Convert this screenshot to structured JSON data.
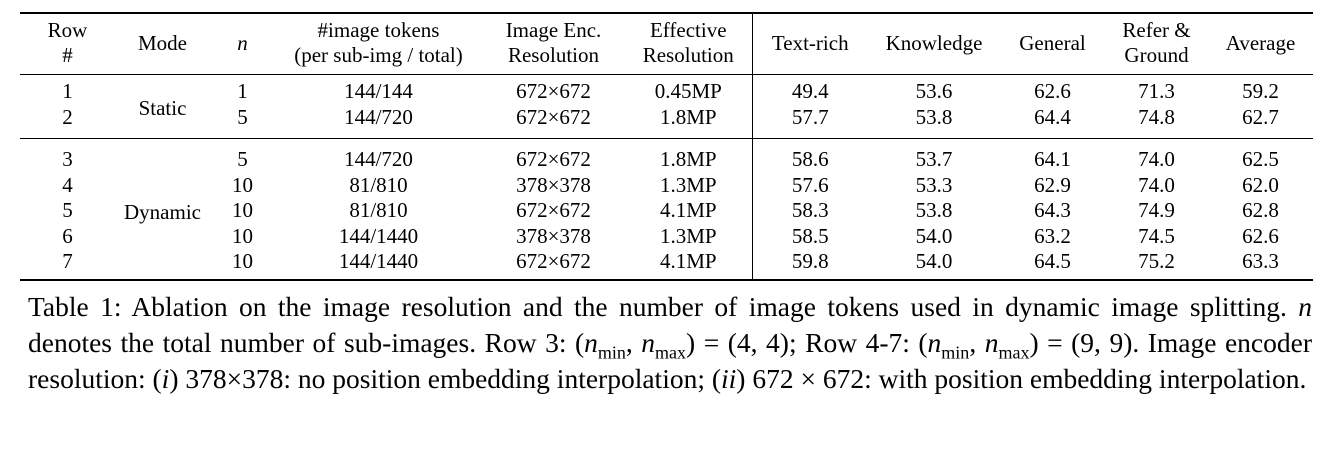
{
  "table": {
    "header": [
      [
        "Row",
        "#"
      ],
      [
        "Mode"
      ],
      [
        "n"
      ],
      [
        "#image tokens",
        "(per sub-img / total)"
      ],
      [
        "Image Enc.",
        "Resolution"
      ],
      [
        "Effective",
        "Resolution"
      ],
      [
        "Text-rich"
      ],
      [
        "Knowledge"
      ],
      [
        "General"
      ],
      [
        "Refer &",
        "Ground"
      ],
      [
        "Average"
      ]
    ],
    "groups": [
      {
        "mode": "Static",
        "rows": [
          [
            "1",
            "1",
            "144/144",
            "672×672",
            "0.45MP",
            "49.4",
            "53.6",
            "62.6",
            "71.3",
            "59.2"
          ],
          [
            "2",
            "5",
            "144/720",
            "672×672",
            "1.8MP",
            "57.7",
            "53.8",
            "64.4",
            "74.8",
            "62.7"
          ]
        ]
      },
      {
        "mode": "Dynamic",
        "rows": [
          [
            "3",
            "5",
            "144/720",
            "672×672",
            "1.8MP",
            "58.6",
            "53.7",
            "64.1",
            "74.0",
            "62.5"
          ],
          [
            "4",
            "10",
            "81/810",
            "378×378",
            "1.3MP",
            "57.6",
            "53.3",
            "62.9",
            "74.0",
            "62.0"
          ],
          [
            "5",
            "10",
            "81/810",
            "672×672",
            "4.1MP",
            "58.3",
            "53.8",
            "64.3",
            "74.9",
            "62.8"
          ],
          [
            "6",
            "10",
            "144/1440",
            "378×378",
            "1.3MP",
            "58.5",
            "54.0",
            "63.2",
            "74.5",
            "62.6"
          ],
          [
            "7",
            "10",
            "144/1440",
            "672×672",
            "4.1MP",
            "59.8",
            "54.0",
            "64.5",
            "75.2",
            "63.3"
          ]
        ]
      }
    ]
  },
  "caption": {
    "segments": [
      "Table 1: Ablation on the image resolution and the number of image tokens used in dynamic image splitting. ",
      "n",
      " denotes the total number of sub-images. Row 3: (",
      "n",
      "min",
      ", ",
      "n",
      "max",
      ") = (4, 4); Row 4-7: (",
      "n",
      "min",
      ", ",
      "n",
      "max",
      ") = (9, 9). Image encoder resolution: (",
      "i",
      ") 378×378: no position embedding interpolation; (",
      "ii",
      ") 672 × 672: with position embedding interpolation."
    ]
  }
}
